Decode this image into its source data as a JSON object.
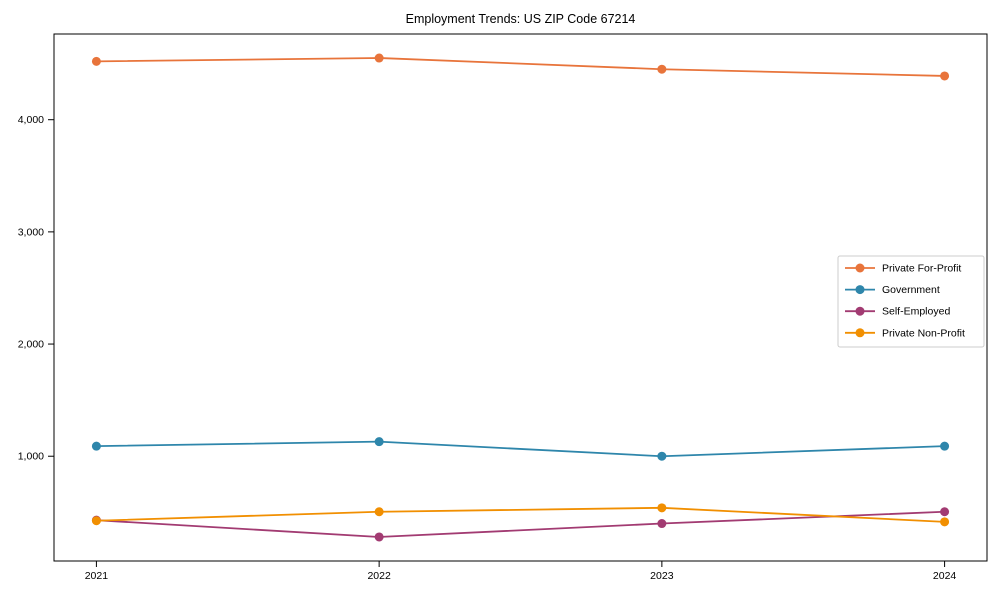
{
  "chart_data": {
    "type": "line",
    "title": "Employment Trends: US ZIP Code 67214",
    "xlabel": "",
    "ylabel": "",
    "x": [
      2021,
      2022,
      2023,
      2024
    ],
    "xtick_labels": [
      "2021",
      "2022",
      "2023",
      "2024"
    ],
    "yticks": [
      1000,
      2000,
      3000,
      4000
    ],
    "ytick_labels": [
      "1,000",
      "2,000",
      "3,000",
      "4,000"
    ],
    "xlim": [
      2020.85,
      2024.15
    ],
    "ylim": [
      66,
      4764
    ],
    "grid": false,
    "legend_position": "center-right",
    "series": [
      {
        "name": "Private For-Profit",
        "color": "#e8743b",
        "values": [
          4520,
          4550,
          4450,
          4390
        ]
      },
      {
        "name": "Government",
        "color": "#2e86ab",
        "values": [
          1090,
          1130,
          1000,
          1090
        ]
      },
      {
        "name": "Self-Employed",
        "color": "#a23b72",
        "values": [
          430,
          280,
          400,
          505
        ]
      },
      {
        "name": "Private Non-Profit",
        "color": "#f18f01",
        "values": [
          425,
          505,
          540,
          415
        ]
      }
    ],
    "colors": {
      "spine": "#000000",
      "legend_border": "#cccccc",
      "background": "#ffffff"
    }
  }
}
